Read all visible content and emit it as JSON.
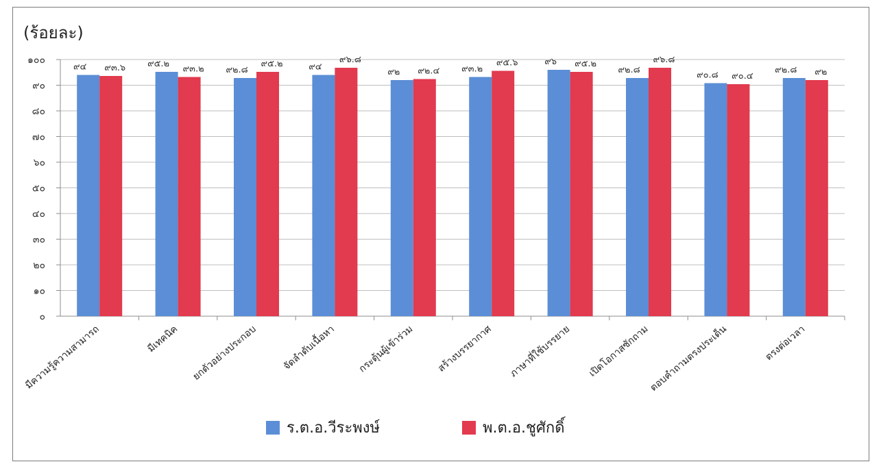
{
  "chart_data": {
    "type": "bar",
    "categories": [
      "มีความรู้ความสามารถ",
      "มีเทคนิค",
      "ยกตัวอย่างประกอบ",
      "จัดลำดับเนื้อหา",
      "กระตุ้นผู้เข้าร่วม",
      "สร้างบรรยากาศ",
      "ภาษาที่ใช้บรรยาย",
      "เปิดโอกาสซักถาม",
      "ตอบคำถามตรงประเด็น",
      "ตรงต่อเวลา"
    ],
    "series": [
      {
        "name": "ร.ต.อ.วีระพงษ์",
        "values": [
          94,
          95.2,
          92.8,
          94,
          92,
          93.2,
          96,
          92.8,
          90.8,
          92.8
        ],
        "labels": [
          "๙๔",
          "๙๕.๒",
          "๙๒.๘",
          "๙๔",
          "๙๒",
          "๙๓.๒",
          "๙๖",
          "๙๒.๘",
          "๙๐.๘",
          "๙๒.๘"
        ],
        "color": "#5B8ED6"
      },
      {
        "name": "พ.ต.อ.ชูศักดิ์",
        "values": [
          93.6,
          93.2,
          95.2,
          96.8,
          92.4,
          95.6,
          95.2,
          96.8,
          90.4,
          92
        ],
        "labels": [
          "๙๓.๖",
          "๙๓.๒",
          "๙๕.๒",
          "๙๖.๘",
          "๙๒.๔",
          "๙๕.๖",
          "๙๕.๒",
          "๙๖.๘",
          "๙๐.๔",
          "๙๒"
        ],
        "color": "#E23A4E"
      }
    ],
    "ylabel": "(ร้อยละ)",
    "ylim": [
      0,
      100
    ],
    "yticks": [
      "๐",
      "๑๐",
      "๒๐",
      "๓๐",
      "๔๐",
      "๕๐",
      "๖๐",
      "๗๐",
      "๘๐",
      "๙๐",
      "๑๐๐"
    ],
    "grid": true,
    "legend_position": "bottom"
  }
}
